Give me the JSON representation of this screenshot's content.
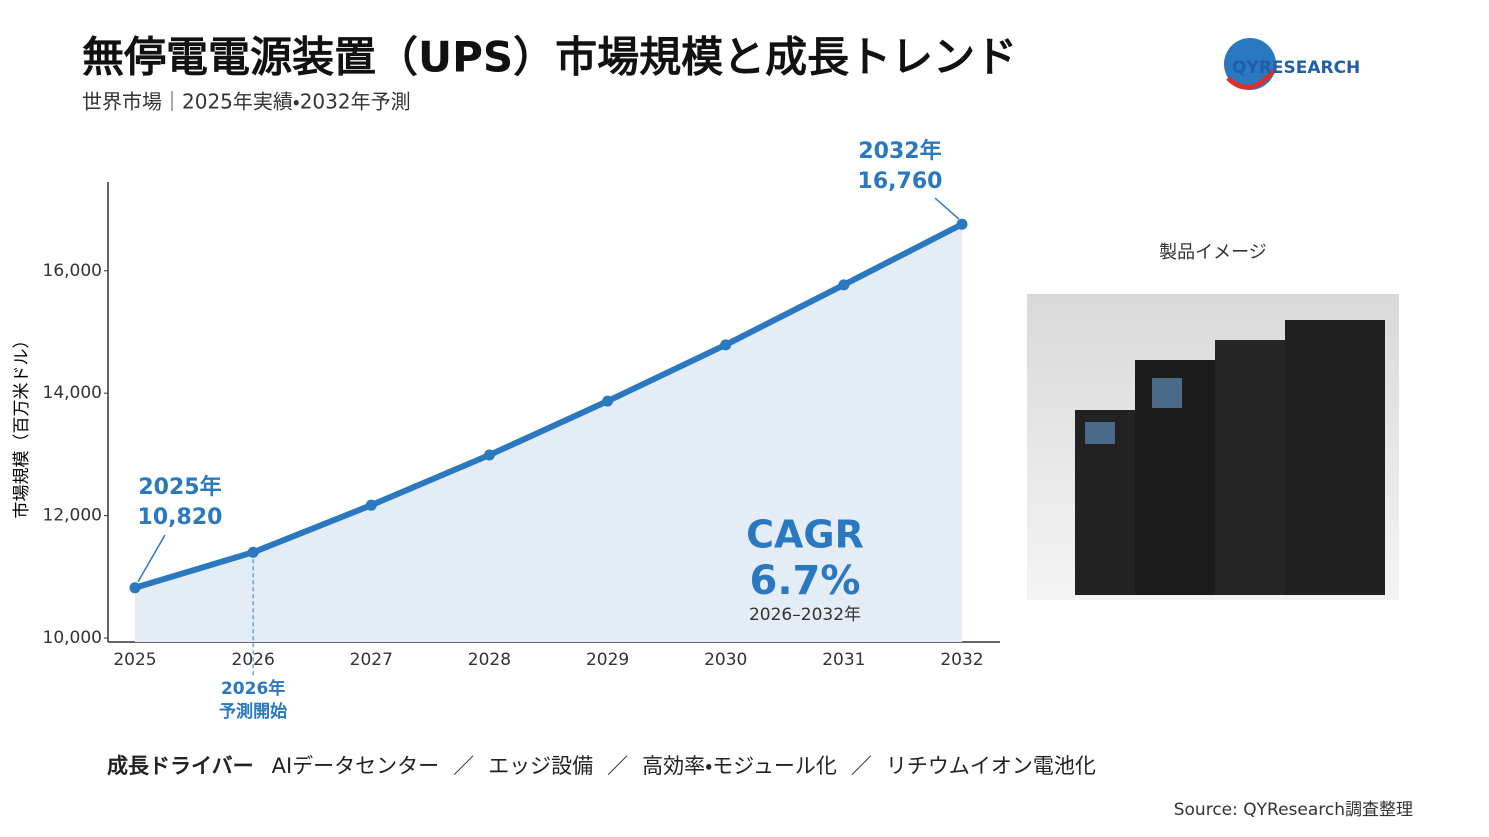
{
  "header": {
    "title": "無停電電源装置（UPS）市場規模と成長トレンド",
    "subtitle": "世界市場｜2025年実績・2032年予測",
    "logo": "QYRESEARCH"
  },
  "chart_data": {
    "type": "line",
    "y_label": "市場規模（百万米ドル）",
    "categories": [
      "2025",
      "2026",
      "2027",
      "2028",
      "2029",
      "2030",
      "2031",
      "2032"
    ],
    "values": [
      10820,
      11400,
      12170,
      12990,
      13870,
      14790,
      15770,
      16760
    ],
    "value_labels": [
      "10,820",
      null,
      null,
      null,
      null,
      null,
      null,
      "16,760"
    ],
    "color": "#2a78c0",
    "area_color": "#e4ecf6",
    "ylim": [
      10000,
      17450
    ],
    "yticks": [
      {
        "value": 10000,
        "label": "10,000"
      },
      {
        "value": 12000,
        "label": "12,000"
      },
      {
        "value": 14000,
        "label": "14,000"
      },
      {
        "value": 16000,
        "label": "16,000"
      }
    ],
    "annotations": {
      "start_label": "2025年",
      "end_label": "2032年",
      "forecast_start": [
        "2026年",
        "予測開始"
      ],
      "cagr": {
        "label": "CAGR",
        "value": "6.7%",
        "period": "2026–2032年"
      }
    }
  },
  "product": {
    "caption": "製品イメージ"
  },
  "drivers": {
    "label": "成長ドライバー",
    "separator": "／",
    "items": [
      "AIデータセンター",
      "エッジ設備",
      "高効率・モジュール化",
      "リチウムイオン電池化"
    ]
  },
  "source": "Source: QYResearch調査整理"
}
